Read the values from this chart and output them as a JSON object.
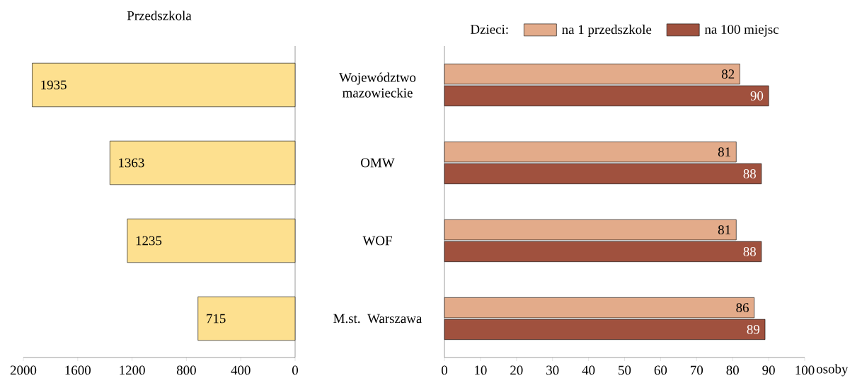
{
  "chart_data": [
    {
      "type": "bar",
      "orientation": "horizontal",
      "title": "Przedszkola",
      "categories": [
        null,
        null,
        null,
        null
      ],
      "values": [
        1935,
        1363,
        1235,
        715
      ],
      "color": "#fde08f",
      "xlim": [
        2000,
        0
      ],
      "xticks": [
        2000,
        1600,
        1200,
        800,
        400,
        0
      ],
      "data_labels": true,
      "tick_labels": "x"
    },
    {
      "type": "bar",
      "orientation": "horizontal",
      "categories": [
        "Województwo mazowieckie",
        "OMW",
        "WOF",
        "M.st. Warszawa"
      ],
      "legend_title": "Dzieci:",
      "legend": "top",
      "xlabel": "osoby",
      "series": [
        {
          "name": "na 1 przedszkole",
          "color": "#e3ab8a",
          "values": [
            82,
            81,
            81,
            86
          ]
        },
        {
          "name": "na 100 miejsc",
          "color": "#a0513e",
          "values": [
            90,
            88,
            88,
            89
          ]
        }
      ],
      "xlim": [
        0,
        100
      ],
      "xticks": [
        0,
        10,
        20,
        30,
        40,
        50,
        60,
        70,
        80,
        90,
        100
      ],
      "data_labels": true
    }
  ]
}
